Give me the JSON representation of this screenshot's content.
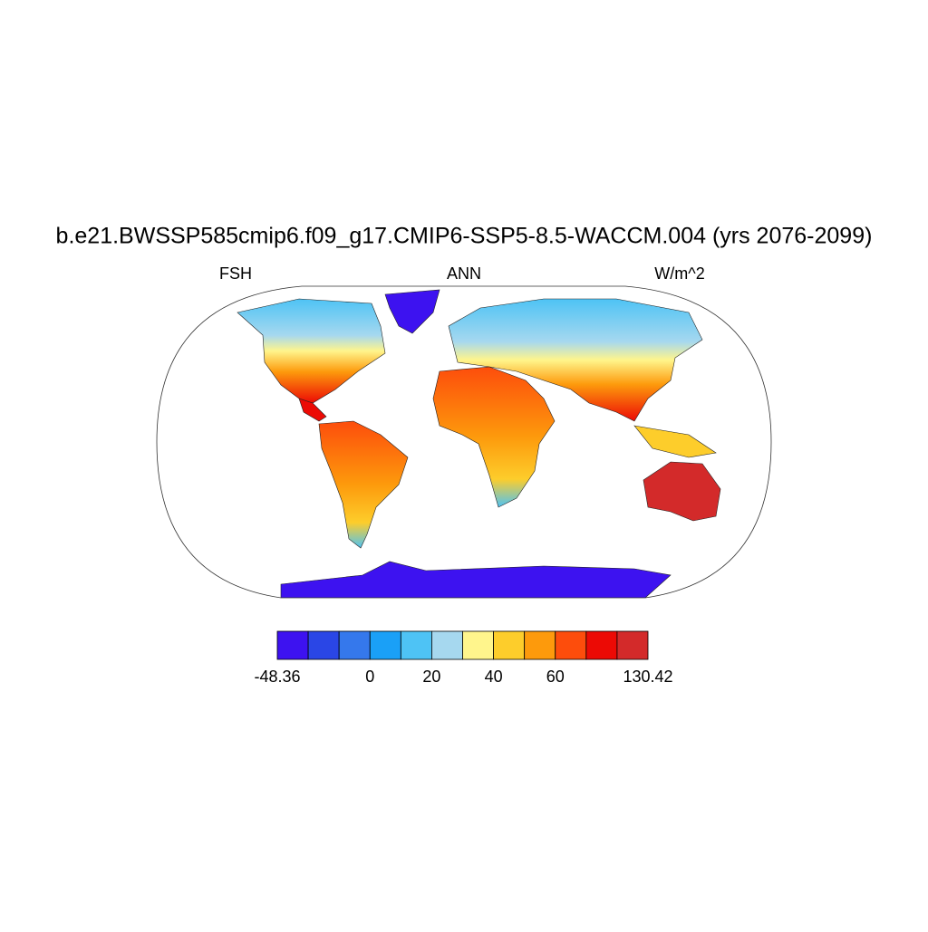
{
  "title": "b.e21.BWSSP585cmip6.f09_g17.CMIP6-SSP5-8.5-WACCM.004 (yrs 2076-2099)",
  "left_label": "FSH",
  "center_label": "ANN",
  "right_label": "W/m^2",
  "colorbar": {
    "colors": [
      "#3d12f0",
      "#2a46e6",
      "#3578ec",
      "#1aa0f7",
      "#4ec3f5",
      "#a6d8ef",
      "#fff58c",
      "#fdcd2b",
      "#fd9a0c",
      "#fd4d0c",
      "#ec0a05",
      "#d32a2a"
    ],
    "levels": [
      -48.36,
      null,
      null,
      0,
      null,
      20,
      null,
      40,
      null,
      60,
      null,
      null,
      130.42
    ]
  }
}
